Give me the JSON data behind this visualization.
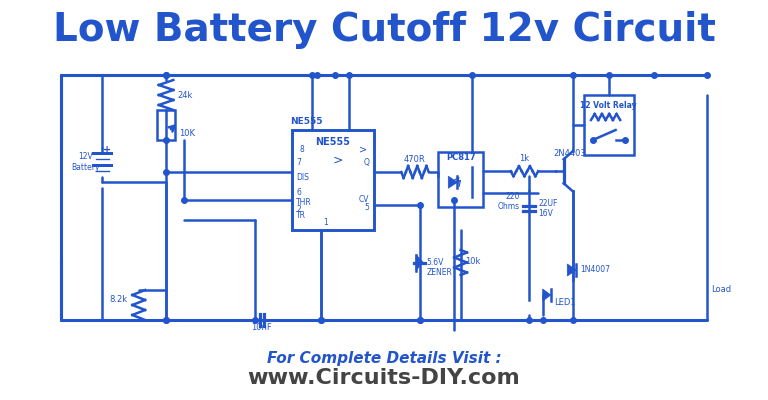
{
  "title": "Low Battery Cutoff 12v Circuit",
  "title_color": "#2255CC",
  "title_fontsize": 28,
  "bg_color": "#FFFFFF",
  "circuit_color": "#2255CC",
  "footer_text1": "For Complete Details Visit :",
  "footer_text2": "www.Circuits-DIY.com",
  "footer_color1": "#2255CC",
  "footer_color2": "#444444",
  "footer_fontsize1": 11,
  "footer_fontsize2": 16,
  "line_width": 1.8
}
